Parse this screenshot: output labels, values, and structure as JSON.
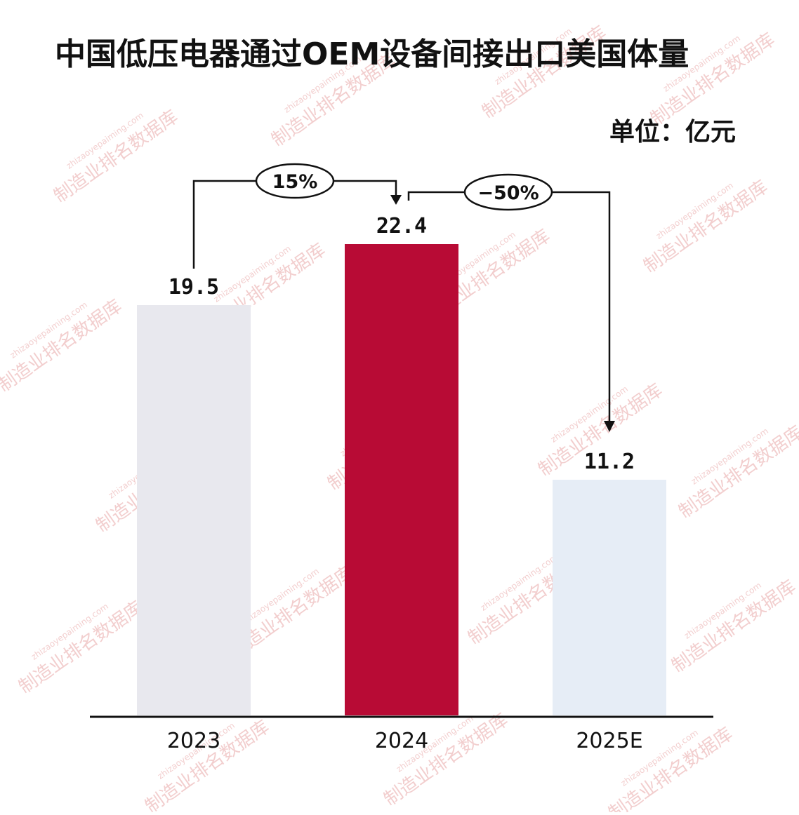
{
  "title": "中国低压电器通过OEM设备间接出口美国体量",
  "unit_label": "单位：亿元",
  "colors": {
    "bar_2023": "#e8e8ee",
    "bar_2024": "#b80b35",
    "bar_2025E": "#e6edf6",
    "axis": "#111111",
    "arrow": "#111111"
  },
  "chart_data": {
    "type": "bar",
    "categories": [
      "2023",
      "2024",
      "2025E"
    ],
    "values": [
      19.5,
      22.4,
      11.2
    ],
    "value_labels": [
      "19.5",
      "22.4",
      "11.2"
    ],
    "ylim": [
      0,
      26
    ],
    "grid": false,
    "growth_annotations": [
      {
        "from": "2023",
        "to": "2024",
        "label": "15%"
      },
      {
        "from": "2024",
        "to": "2025E",
        "label": "−50%"
      }
    ]
  },
  "watermark": {
    "text": "制造业排名数据库",
    "url": "zhizaoyepaiming.com"
  }
}
